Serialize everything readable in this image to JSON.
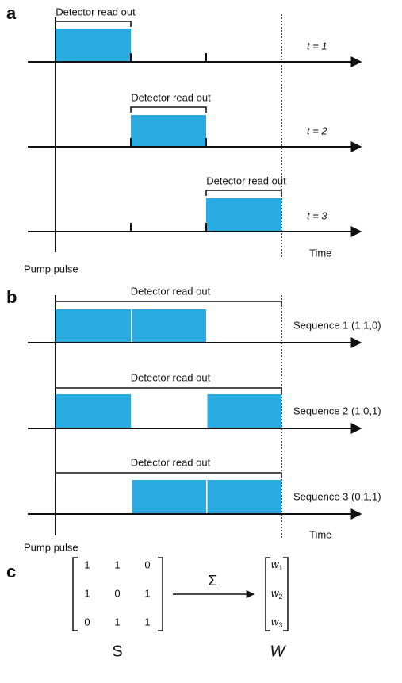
{
  "panel_a": {
    "label": "a",
    "rows": [
      {
        "readout": "Detector read out",
        "time": "t = 1"
      },
      {
        "readout": "Detector read out",
        "time": "t = 2"
      },
      {
        "readout": "Detector read out",
        "time": "t = 3"
      }
    ],
    "time_label": "Time",
    "pump_label": "Pump pulse"
  },
  "panel_b": {
    "label": "b",
    "rows": [
      {
        "readout": "Detector read out",
        "sequence": "Sequence 1 (1,1,0)"
      },
      {
        "readout": "Detector read out",
        "sequence": "Sequence 2 (1,0,1)"
      },
      {
        "readout": "Detector read out",
        "sequence": "Sequence 3 (0,1,1)"
      }
    ],
    "time_label": "Time",
    "pump_label": "Pump pulse"
  },
  "panel_c": {
    "label": "c",
    "matrix": [
      [
        "1",
        "1",
        "0"
      ],
      [
        "1",
        "0",
        "1"
      ],
      [
        "0",
        "1",
        "1"
      ]
    ],
    "matrix_label": "S",
    "operator": "Σ",
    "vector": [
      {
        "symbol": "w",
        "index": "1"
      },
      {
        "symbol": "w",
        "index": "2"
      },
      {
        "symbol": "w",
        "index": "3"
      }
    ],
    "vector_label": "W"
  }
}
